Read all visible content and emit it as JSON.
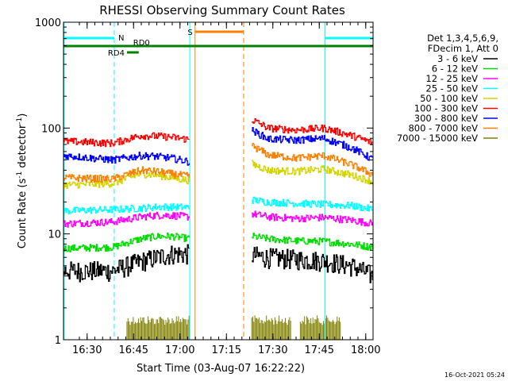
{
  "chart_data": {
    "type": "line",
    "title": "RHESSI Observing Summary Count Rates",
    "xlabel": "Start Time (03-Aug-07 16:22:22)",
    "ylabel_main": "Count Rate (s",
    "ylabel_sup1": "-1",
    "ylabel_mid": " detector",
    "ylabel_sup2": "-1",
    "ylabel_end": ")",
    "yscale": "log",
    "ylim": [
      1,
      1000
    ],
    "xlim_minutes": [
      0,
      100
    ],
    "x_ticks": [
      {
        "m": 7.63,
        "label": "16:30"
      },
      {
        "m": 22.63,
        "label": "16:45"
      },
      {
        "m": 37.63,
        "label": "17:00"
      },
      {
        "m": 52.63,
        "label": "17:15"
      },
      {
        "m": 67.63,
        "label": "17:30"
      },
      {
        "m": 82.63,
        "label": "17:45"
      },
      {
        "m": 97.63,
        "label": "18:00"
      }
    ],
    "y_ticks": [
      {
        "v": 1,
        "label": "1"
      },
      {
        "v": 10,
        "label": "10"
      },
      {
        "v": 100,
        "label": "100"
      },
      {
        "v": 1000,
        "label": "1000"
      }
    ],
    "legend": {
      "header1": "Det 1,3,4,5,6,9,",
      "header2": "FDecim 1, Att 0",
      "placement": "right"
    },
    "series": [
      {
        "name": "3 - 6 keV",
        "color": "#000000",
        "seg1": [
          4.5,
          4.5,
          5.5,
          6.0,
          6.5,
          6.5
        ],
        "seg2": [
          6.3,
          6.0,
          5.8,
          5.6,
          5.0,
          4.0
        ]
      },
      {
        "name": "6 - 12 keV",
        "color": "#00dd00",
        "seg1": [
          7.3,
          7.5,
          9.0,
          9.5,
          9.5,
          9.0
        ],
        "seg2": [
          9.5,
          9.0,
          8.6,
          8.5,
          8.0,
          7.5
        ]
      },
      {
        "name": "12 - 25 keV",
        "color": "#ff00ff",
        "seg1": [
          12.5,
          13.0,
          14.5,
          15.0,
          15.0,
          14.5
        ],
        "seg2": [
          15.5,
          14.5,
          14.0,
          14.3,
          13.5,
          12.5
        ]
      },
      {
        "name": "25 - 50 keV",
        "color": "#00ffff",
        "seg1": [
          16.5,
          17.0,
          17.5,
          18.0,
          18.0,
          17.8
        ],
        "seg2": [
          21.0,
          20.0,
          19.5,
          19.0,
          18.5,
          17.0
        ]
      },
      {
        "name": "50 - 100 keV",
        "color": "#d4d400",
        "seg1": [
          29.0,
          30.0,
          37.0,
          36.0,
          34.0,
          32.0
        ],
        "seg2": [
          46.0,
          40.0,
          39.0,
          41.0,
          36.0,
          31.0
        ]
      },
      {
        "name": "100 - 300 keV",
        "color": "#ff0000",
        "seg1": [
          75.0,
          72.0,
          85.0,
          84.0,
          82.0,
          78.0
        ],
        "seg2": [
          120.0,
          100.0,
          96.0,
          100.0,
          85.0,
          72.0
        ]
      },
      {
        "name": "300 - 800 keV",
        "color": "#0000ff",
        "seg1": [
          55.0,
          50.0,
          55.0,
          54.0,
          52.0,
          48.0
        ],
        "seg2": [
          95.0,
          79.0,
          77.0,
          80.0,
          65.0,
          50.0
        ]
      },
      {
        "name": "800 - 7000 keV",
        "color": "#ff8000",
        "seg1": [
          34.0,
          33.0,
          40.0,
          39.0,
          37.0,
          35.0
        ],
        "seg2": [
          68.0,
          56.0,
          52.0,
          55.0,
          45.0,
          36.0
        ]
      },
      {
        "name": "7000 - 15000 keV",
        "color": "#808000",
        "seg1": [],
        "seg2": []
      }
    ],
    "series_minutes": {
      "seg1": [
        0,
        16,
        25,
        30,
        35,
        40.6
      ],
      "seg2": [
        60.8,
        66,
        75,
        84,
        93,
        100
      ]
    },
    "flag_bars": [
      {
        "label": "N",
        "color": "#00ffff",
        "row": 1,
        "ranges": [
          [
            0,
            16.4
          ],
          [
            84.5,
            100
          ]
        ]
      },
      {
        "label": "S",
        "color": "#ff8000",
        "row": 0,
        "ranges": [
          [
            42.5,
            58.2
          ]
        ]
      },
      {
        "label": "RD0",
        "color": "#008000",
        "row": 2,
        "ranges": [
          [
            0,
            100
          ]
        ]
      },
      {
        "label": "RD4",
        "color": "#008000",
        "row": 3,
        "ranges": [
          [
            20.5,
            24.3
          ]
        ]
      }
    ],
    "vertical_lines": [
      {
        "m": 0.2,
        "color": "#00ffff",
        "style": "solid"
      },
      {
        "m": 16.4,
        "color": "#00ffff",
        "style": "dashed"
      },
      {
        "m": 40.8,
        "color": "#00ffff",
        "style": "solid"
      },
      {
        "m": 42.5,
        "color": "#ff8000",
        "style": "solid"
      },
      {
        "m": 58.2,
        "color": "#ff8000",
        "style": "dashed"
      },
      {
        "m": 84.5,
        "color": "#00ffff",
        "style": "solid"
      },
      {
        "m": 100,
        "color": "#00ffff",
        "style": "dashed"
      }
    ],
    "olive_ranges_minutes": [
      [
        20.5,
        40.7
      ],
      [
        60.8,
        73.5
      ],
      [
        76.5,
        89.5
      ]
    ],
    "olive_level": 1.7,
    "timestamp": "16-Oct-2021 05:24"
  }
}
